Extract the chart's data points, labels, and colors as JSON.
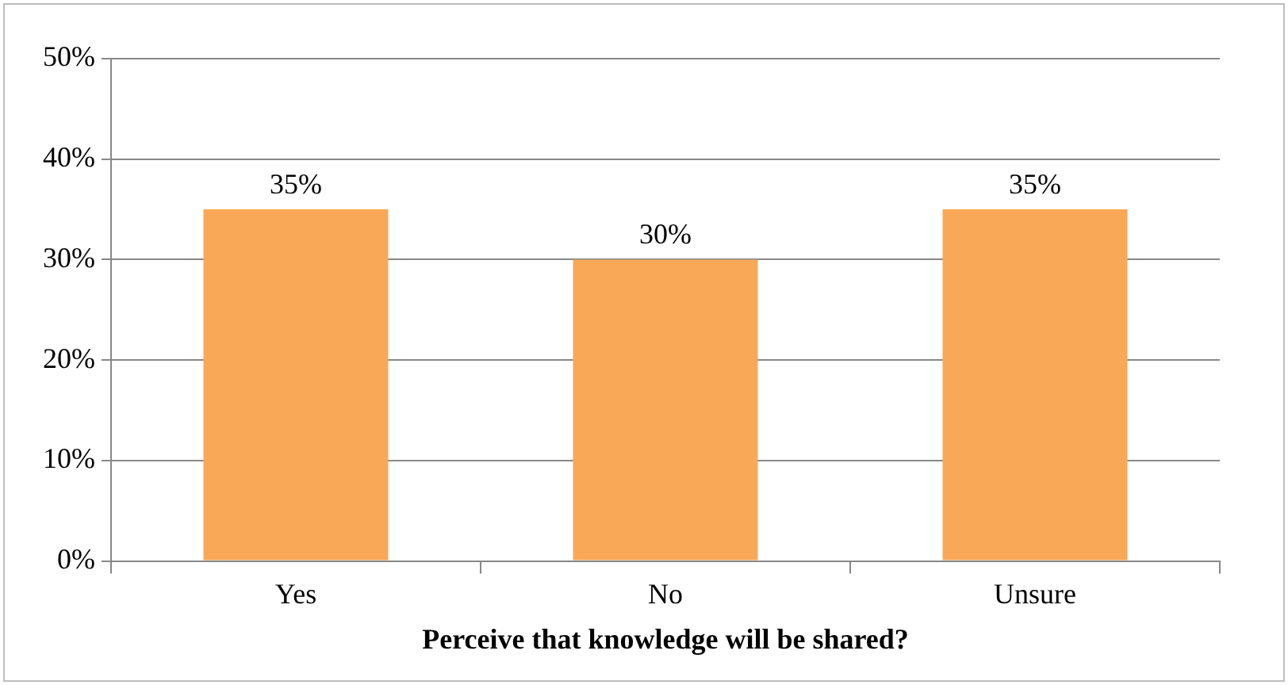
{
  "chart_data": {
    "type": "bar",
    "xlabel": "Perceive that knowledge will be shared?",
    "categories": [
      "Yes",
      "No",
      "Unsure"
    ],
    "values": [
      35,
      30,
      35
    ],
    "value_labels": [
      "35%",
      "30%",
      "35%"
    ],
    "color": "#f9a857",
    "ylim": [
      0,
      50
    ],
    "yticks": [
      {
        "value": 0,
        "label": "0%"
      },
      {
        "value": 10,
        "label": "10%"
      },
      {
        "value": 20,
        "label": "20%"
      },
      {
        "value": 30,
        "label": "30%"
      },
      {
        "value": 40,
        "label": "40%"
      },
      {
        "value": 50,
        "label": "50%"
      }
    ],
    "grid": "y",
    "legend": false
  }
}
